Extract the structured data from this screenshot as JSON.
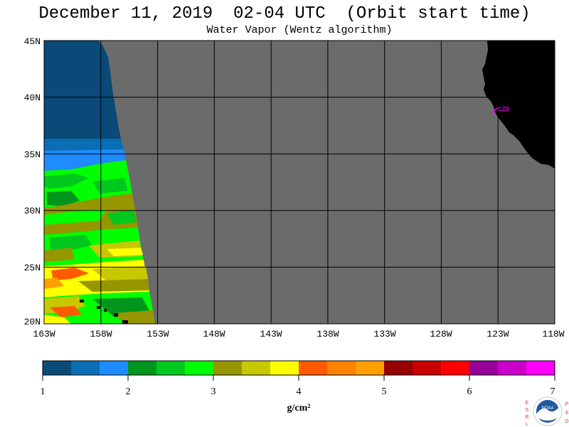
{
  "header": {
    "title": "December 11, 2019  02-04 UTC  (Orbit start time)",
    "subtitle": "Water Vapor (Wentz algorithm)"
  },
  "map": {
    "lat_labels": [
      "45N",
      "40N",
      "35N",
      "30N",
      "25N",
      "20N"
    ],
    "lon_labels": [
      "163W",
      "158W",
      "153W",
      "148W",
      "143W",
      "138W",
      "133W",
      "128W",
      "123W",
      "118W"
    ],
    "lat_range": [
      20,
      45
    ],
    "lon_range": [
      -163,
      -118
    ],
    "station_label": "CZD",
    "colors": {
      "no_data": "#6b6b6b",
      "land": "#000000",
      "grid": "#000000",
      "station": "#ff00ff"
    }
  },
  "colorbar": {
    "tick_labels": [
      "1",
      "2",
      "3",
      "4",
      "5",
      "6",
      "7"
    ],
    "unit": "g/cm²",
    "colors": [
      "#0a4a78",
      "#0a6eb4",
      "#1e8cff",
      "#00961e",
      "#00c81e",
      "#00ff00",
      "#969600",
      "#c8c800",
      "#ffff00",
      "#ff5a00",
      "#ff8200",
      "#ffa000",
      "#960000",
      "#c80000",
      "#ff0000",
      "#960096",
      "#c800c8",
      "#ff00ff"
    ]
  },
  "logo": {
    "left_letters": [
      "E",
      "S",
      "R",
      "L"
    ],
    "right_letters": [
      "P",
      "S",
      "D"
    ],
    "center_text": "NOAA"
  }
}
